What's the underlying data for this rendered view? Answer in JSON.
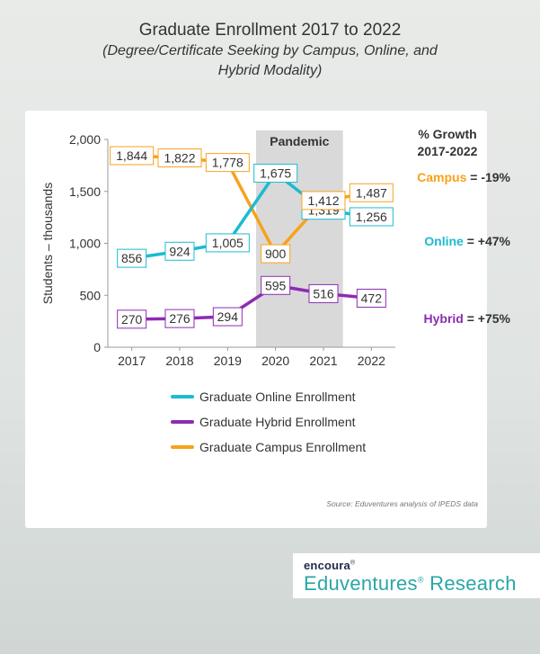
{
  "header": {
    "title": "Graduate Enrollment 2017 to 2022",
    "subtitle_line1": "(Degree/Certificate Seeking by Campus, Online, and",
    "subtitle_line2": "Hybrid Modality)"
  },
  "colors": {
    "online": "#1bbbd0",
    "hybrid": "#8d2bb3",
    "campus": "#f8a21b",
    "pandemic_band": "#d9d9d9"
  },
  "chart_data": {
    "type": "line",
    "x": [
      "2017",
      "2018",
      "2019",
      "2020",
      "2021",
      "2022"
    ],
    "ylabel": "Students – thousands",
    "ylim": [
      0,
      2000
    ],
    "yticks": [
      "0",
      "500",
      "1,000",
      "1,500",
      "2,000"
    ],
    "ytick_values": [
      0,
      500,
      1000,
      1500,
      2000
    ],
    "grid": false,
    "legend_position": "bottom",
    "shaded_region": {
      "label": "Pandemic",
      "from": "2020",
      "to": "2021"
    },
    "series": [
      {
        "key": "online",
        "name": "Graduate Online Enrollment",
        "values": [
          856,
          924,
          1005,
          1675,
          1319,
          1256
        ],
        "labels": [
          "856",
          "924",
          "1,005",
          "1,675",
          "1,319",
          "1,256"
        ],
        "growth_name": "Online",
        "growth_value": " = +47%"
      },
      {
        "key": "hybrid",
        "name": "Graduate Hybrid Enrollment",
        "values": [
          270,
          276,
          294,
          595,
          516,
          472
        ],
        "labels": [
          "270",
          "276",
          "294",
          "595",
          "516",
          "472"
        ],
        "growth_name": "Hybrid",
        "growth_value": " = +75%"
      },
      {
        "key": "campus",
        "name": "Graduate Campus Enrollment",
        "values": [
          1844,
          1822,
          1778,
          900,
          1412,
          1487
        ],
        "labels": [
          "1,844",
          "1,822",
          "1,778",
          "900",
          "1,412",
          "1,487"
        ],
        "growth_name": "Campus",
        "growth_value": " = -19%"
      }
    ],
    "growth_title_line1": "% Growth",
    "growth_title_line2": "2017-2022"
  },
  "legend_order": [
    "online",
    "hybrid",
    "campus"
  ],
  "source": "Source: Eduventures analysis of IPEDS data",
  "brand": {
    "top": "encoura",
    "top_mark": "®",
    "bottom": "Eduventures",
    "bottom_mark": "®",
    "bottom_rest": " Research"
  }
}
